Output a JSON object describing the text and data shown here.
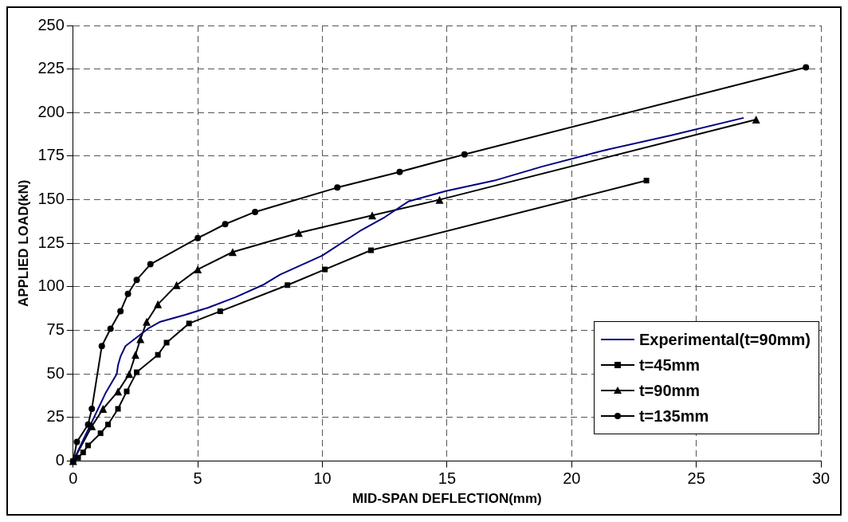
{
  "chart_data": {
    "type": "line",
    "xlabel": "MID-SPAN DEFLECTION(mm)",
    "ylabel": "APPLIED LOAD(kN)",
    "xlim": [
      0,
      30
    ],
    "xticks": [
      0,
      5,
      10,
      15,
      20,
      25,
      30
    ],
    "ylim": [
      0,
      250
    ],
    "yticks": [
      0,
      25,
      50,
      75,
      100,
      125,
      150,
      175,
      200,
      225,
      250
    ],
    "grid": true,
    "legend": "bottom right",
    "line_style": "solid",
    "series": [
      {
        "name": "Experimental(t=90mm)",
        "color": "#000080",
        "marker": "none",
        "x": [
          0,
          0.5,
          0.9,
          1.3,
          1.75,
          1.8,
          1.9,
          2.1,
          3,
          3.5,
          4.5,
          5.4,
          6.5,
          7.6,
          8.3,
          10,
          11.5,
          12.5,
          13.45,
          14.95,
          16.9,
          18.8,
          21.2,
          24,
          26.9
        ],
        "values": [
          0,
          15,
          27,
          39,
          50,
          55,
          60,
          66,
          76,
          80,
          84,
          88,
          94,
          101,
          107,
          118,
          132,
          140,
          149,
          155,
          161,
          169,
          178,
          187,
          197
        ]
      },
      {
        "name": "t=45mm",
        "color": "#000000",
        "marker": "square",
        "x": [
          0,
          0.2,
          0.4,
          0.6,
          1.1,
          1.4,
          1.8,
          2.15,
          2.55,
          3.4,
          3.75,
          4.65,
          5.9,
          8.6,
          10.1,
          11.95,
          23
        ],
        "values": [
          0,
          2,
          5,
          9,
          16,
          21,
          30,
          40,
          51,
          61,
          68,
          79,
          86,
          101,
          110,
          121,
          161
        ]
      },
      {
        "name": "t=90mm",
        "color": "#000000",
        "marker": "triangle",
        "x": [
          0,
          0.75,
          1.2,
          1.8,
          2.25,
          2.5,
          2.7,
          2.95,
          3.4,
          4.15,
          5,
          6.4,
          9.05,
          12,
          14.7,
          27.4
        ],
        "values": [
          0,
          20,
          30,
          40,
          50,
          61,
          70,
          80,
          90,
          101,
          110,
          120,
          131,
          141,
          150,
          196
        ]
      },
      {
        "name": "t=135mm",
        "color": "#000000",
        "marker": "circle",
        "x": [
          0,
          0.15,
          0.6,
          0.75,
          1.15,
          1.5,
          1.9,
          2.2,
          2.55,
          3.1,
          5,
          6.1,
          7.3,
          10.6,
          13.1,
          15.7,
          29.4
        ],
        "values": [
          0,
          11,
          21,
          30,
          66,
          76,
          86,
          96,
          104,
          113,
          128,
          136,
          143,
          157,
          166,
          176,
          226
        ]
      }
    ]
  }
}
